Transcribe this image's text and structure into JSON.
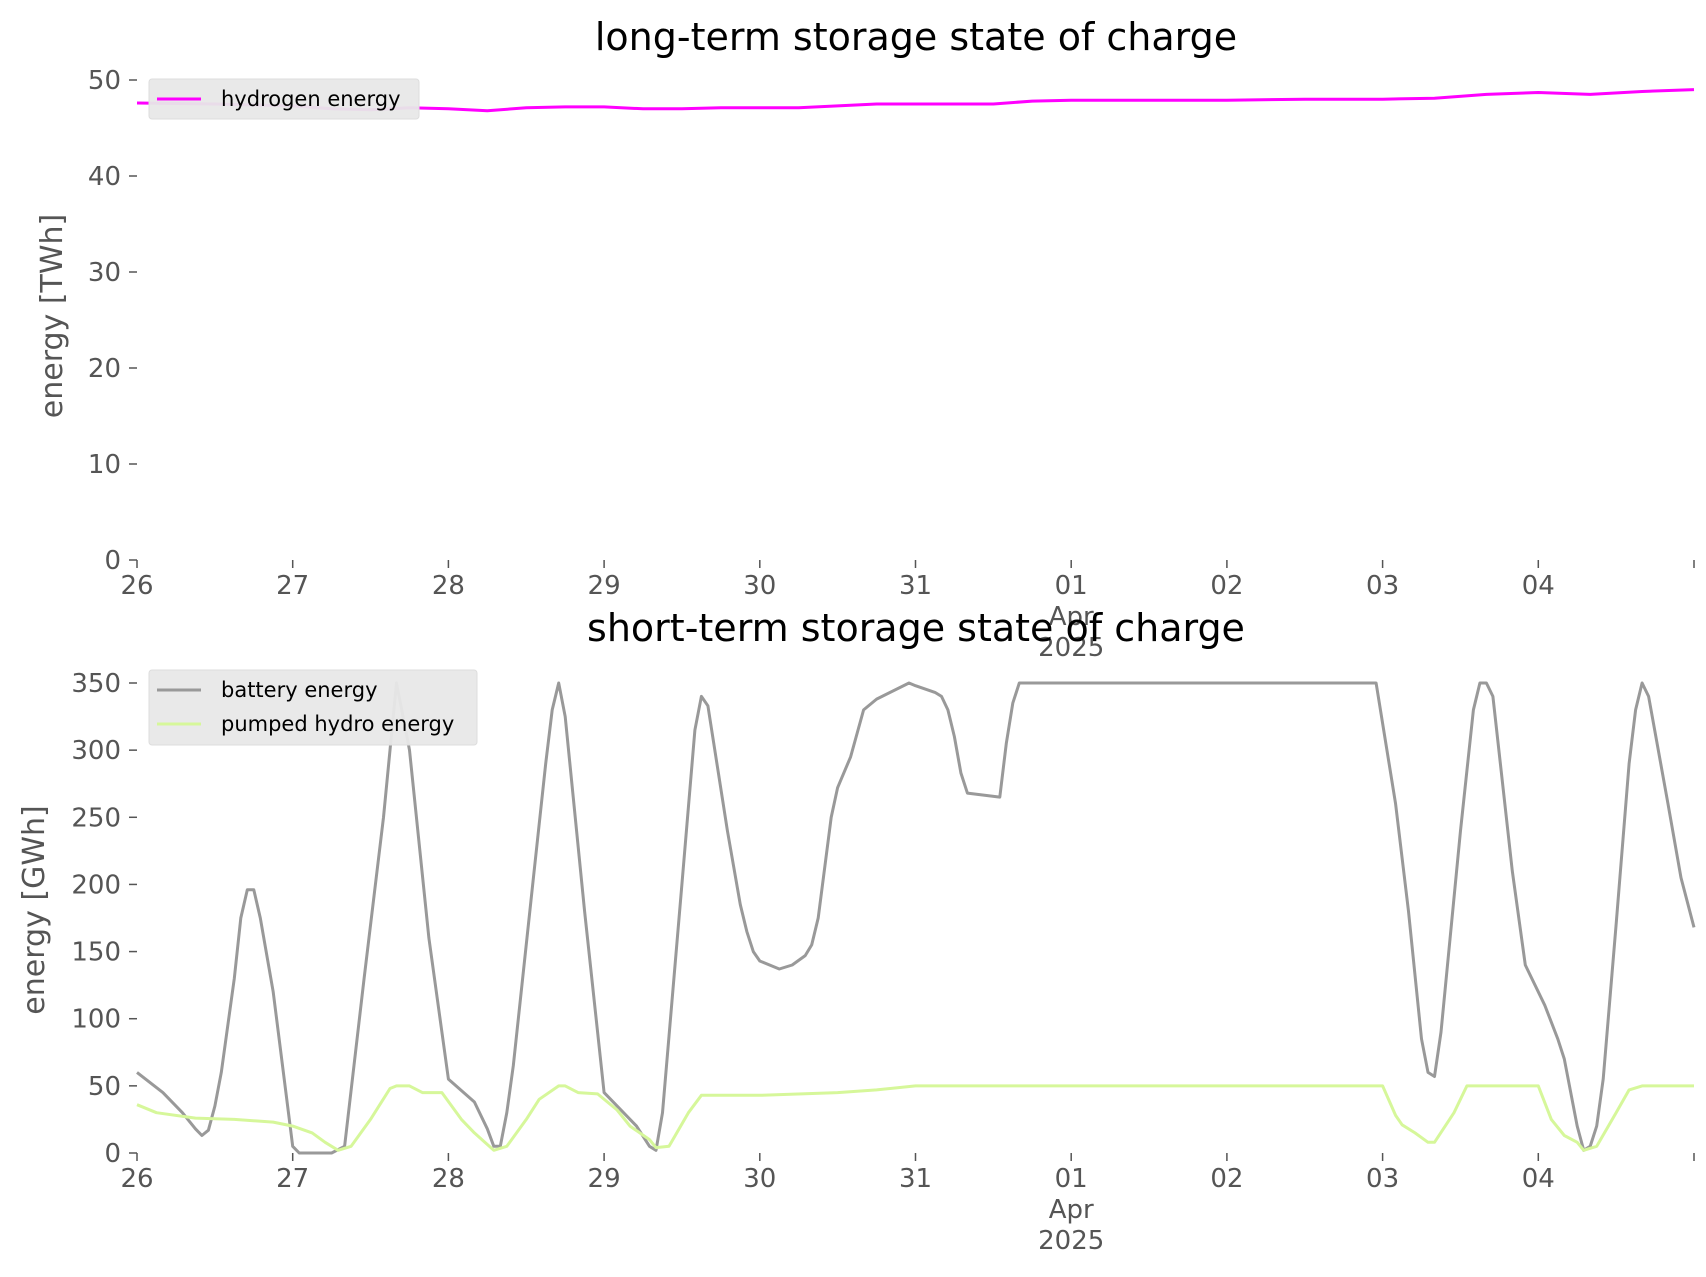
{
  "chart_data": [
    {
      "type": "line",
      "title": "long-term storage state of charge",
      "ylabel": "energy [TWh]",
      "ylim": [
        0,
        50
      ],
      "yticks": [
        0,
        10,
        20,
        30,
        40,
        50
      ],
      "xlim": [
        "2025-03-26T00:00",
        "2025-04-05T00:00"
      ],
      "xtick_labels": [
        "26",
        "27",
        "28",
        "29",
        "30",
        "31",
        "01",
        "02",
        "03",
        "04"
      ],
      "xtick_sublabels": {
        "01": [
          "Apr",
          "2025"
        ]
      },
      "grid": false,
      "legend_position": "top-left",
      "series": [
        {
          "name": "hydrogen energy",
          "color": "#ff00ff",
          "points": [
            [
              "2025-03-26T00:00",
              47.6
            ],
            [
              "2025-03-26T12:00",
              47.5
            ],
            [
              "2025-03-27T00:00",
              47.3
            ],
            [
              "2025-03-27T06:00",
              47.0
            ],
            [
              "2025-03-27T12:00",
              46.9
            ],
            [
              "2025-03-27T18:00",
              47.1
            ],
            [
              "2025-03-28T00:00",
              47.0
            ],
            [
              "2025-03-28T06:00",
              46.8
            ],
            [
              "2025-03-28T12:00",
              47.1
            ],
            [
              "2025-03-28T18:00",
              47.2
            ],
            [
              "2025-03-29T00:00",
              47.2
            ],
            [
              "2025-03-29T06:00",
              47.0
            ],
            [
              "2025-03-29T12:00",
              47.0
            ],
            [
              "2025-03-29T18:00",
              47.1
            ],
            [
              "2025-03-30T00:00",
              47.1
            ],
            [
              "2025-03-30T06:00",
              47.1
            ],
            [
              "2025-03-30T12:00",
              47.3
            ],
            [
              "2025-03-30T18:00",
              47.5
            ],
            [
              "2025-03-31T00:00",
              47.5
            ],
            [
              "2025-03-31T12:00",
              47.5
            ],
            [
              "2025-03-31T18:00",
              47.8
            ],
            [
              "2025-04-01T00:00",
              47.9
            ],
            [
              "2025-04-01T12:00",
              47.9
            ],
            [
              "2025-04-02T00:00",
              47.9
            ],
            [
              "2025-04-02T12:00",
              48.0
            ],
            [
              "2025-04-03T00:00",
              48.0
            ],
            [
              "2025-04-03T08:00",
              48.1
            ],
            [
              "2025-04-03T16:00",
              48.5
            ],
            [
              "2025-04-04T00:00",
              48.7
            ],
            [
              "2025-04-04T08:00",
              48.5
            ],
            [
              "2025-04-04T16:00",
              48.8
            ],
            [
              "2025-04-05T00:00",
              49.0
            ]
          ]
        }
      ]
    },
    {
      "type": "line",
      "title": "short-term storage state of charge",
      "ylabel": "energy [GWh]",
      "ylim": [
        0,
        350
      ],
      "yticks": [
        0,
        50,
        100,
        150,
        200,
        250,
        300,
        350
      ],
      "xlim": [
        "2025-03-26T00:00",
        "2025-04-05T00:00"
      ],
      "xtick_labels": [
        "26",
        "27",
        "28",
        "29",
        "30",
        "31",
        "01",
        "02",
        "03",
        "04"
      ],
      "xtick_sublabels": {
        "01": [
          "Apr",
          "2025"
        ]
      },
      "grid": false,
      "legend_position": "top-left",
      "series": [
        {
          "name": "battery energy",
          "color": "#999999",
          "points": [
            [
              "2025-03-26T00:00",
              60
            ],
            [
              "2025-03-26T04:00",
              45
            ],
            [
              "2025-03-26T07:00",
              30
            ],
            [
              "2025-03-26T09:00",
              18
            ],
            [
              "2025-03-26T10:00",
              13
            ],
            [
              "2025-03-26T11:00",
              17
            ],
            [
              "2025-03-26T12:00",
              35
            ],
            [
              "2025-03-26T13:00",
              60
            ],
            [
              "2025-03-26T15:00",
              130
            ],
            [
              "2025-03-26T16:00",
              175
            ],
            [
              "2025-03-26T17:00",
              196
            ],
            [
              "2025-03-26T18:00",
              196
            ],
            [
              "2025-03-26T19:00",
              175
            ],
            [
              "2025-03-26T21:00",
              120
            ],
            [
              "2025-03-27T00:00",
              5
            ],
            [
              "2025-03-27T01:00",
              0
            ],
            [
              "2025-03-27T06:00",
              0
            ],
            [
              "2025-03-27T08:00",
              5
            ],
            [
              "2025-03-27T11:00",
              130
            ],
            [
              "2025-03-27T14:00",
              250
            ],
            [
              "2025-03-27T16:00",
              350
            ],
            [
              "2025-03-27T18:00",
              300
            ],
            [
              "2025-03-27T21:00",
              160
            ],
            [
              "2025-03-27T23:00",
              90
            ],
            [
              "2025-03-28T00:00",
              55
            ],
            [
              "2025-03-28T04:00",
              38
            ],
            [
              "2025-03-28T06:00",
              18
            ],
            [
              "2025-03-28T07:00",
              5
            ],
            [
              "2025-03-28T08:00",
              5
            ],
            [
              "2025-03-28T09:00",
              30
            ],
            [
              "2025-03-28T10:00",
              65
            ],
            [
              "2025-03-28T13:00",
              200
            ],
            [
              "2025-03-28T15:00",
              290
            ],
            [
              "2025-03-28T16:00",
              330
            ],
            [
              "2025-03-28T17:00",
              350
            ],
            [
              "2025-03-28T18:00",
              325
            ],
            [
              "2025-03-28T21:00",
              180
            ],
            [
              "2025-03-29T00:00",
              45
            ],
            [
              "2025-03-29T05:00",
              20
            ],
            [
              "2025-03-29T07:00",
              5
            ],
            [
              "2025-03-29T08:00",
              2
            ],
            [
              "2025-03-29T09:00",
              30
            ],
            [
              "2025-03-29T12:00",
              200
            ],
            [
              "2025-03-29T14:00",
              315
            ],
            [
              "2025-03-29T15:00",
              340
            ],
            [
              "2025-03-29T16:00",
              333
            ],
            [
              "2025-03-29T19:00",
              240
            ],
            [
              "2025-03-29T21:00",
              185
            ],
            [
              "2025-03-29T22:00",
              165
            ],
            [
              "2025-03-29T23:00",
              150
            ],
            [
              "2025-03-30T00:00",
              143
            ],
            [
              "2025-03-30T03:00",
              137
            ],
            [
              "2025-03-30T05:00",
              140
            ],
            [
              "2025-03-30T07:00",
              147
            ],
            [
              "2025-03-30T08:00",
              155
            ],
            [
              "2025-03-30T09:00",
              175
            ],
            [
              "2025-03-30T11:00",
              250
            ],
            [
              "2025-03-30T12:00",
              272
            ],
            [
              "2025-03-30T14:00",
              295
            ],
            [
              "2025-03-30T16:00",
              330
            ],
            [
              "2025-03-30T18:00",
              338
            ],
            [
              "2025-03-30T23:00",
              350
            ],
            [
              "2025-03-31T00:00",
              348
            ],
            [
              "2025-03-31T03:00",
              343
            ],
            [
              "2025-03-31T04:00",
              340
            ],
            [
              "2025-03-31T05:00",
              330
            ],
            [
              "2025-03-31T06:00",
              310
            ],
            [
              "2025-03-31T07:00",
              283
            ],
            [
              "2025-03-31T08:00",
              268
            ],
            [
              "2025-03-31T13:00",
              265
            ],
            [
              "2025-03-31T14:00",
              305
            ],
            [
              "2025-03-31T15:00",
              335
            ],
            [
              "2025-03-31T16:00",
              350
            ],
            [
              "2025-04-02T23:00",
              350
            ],
            [
              "2025-04-03T02:00",
              260
            ],
            [
              "2025-04-03T04:00",
              180
            ],
            [
              "2025-04-03T06:00",
              85
            ],
            [
              "2025-04-03T07:00",
              60
            ],
            [
              "2025-04-03T08:00",
              57
            ],
            [
              "2025-04-03T09:00",
              90
            ],
            [
              "2025-04-03T12:00",
              240
            ],
            [
              "2025-04-03T14:00",
              330
            ],
            [
              "2025-04-03T15:00",
              350
            ],
            [
              "2025-04-03T16:00",
              350
            ],
            [
              "2025-04-03T17:00",
              340
            ],
            [
              "2025-04-03T20:00",
              210
            ],
            [
              "2025-04-03T22:00",
              140
            ],
            [
              "2025-04-04T01:00",
              110
            ],
            [
              "2025-04-04T03:00",
              85
            ],
            [
              "2025-04-04T04:00",
              70
            ],
            [
              "2025-04-04T06:00",
              20
            ],
            [
              "2025-04-04T07:00",
              2
            ],
            [
              "2025-04-04T08:00",
              5
            ],
            [
              "2025-04-04T09:00",
              20
            ],
            [
              "2025-04-04T10:00",
              55
            ],
            [
              "2025-04-04T12:00",
              170
            ],
            [
              "2025-04-04T14:00",
              290
            ],
            [
              "2025-04-04T15:00",
              330
            ],
            [
              "2025-04-04T16:00",
              350
            ],
            [
              "2025-04-04T17:00",
              340
            ],
            [
              "2025-04-04T20:00",
              260
            ],
            [
              "2025-04-04T22:00",
              205
            ],
            [
              "2025-04-05T00:00",
              168
            ]
          ]
        },
        {
          "name": "pumped hydro energy",
          "color": "#d6f79a",
          "points": [
            [
              "2025-03-26T00:00",
              36
            ],
            [
              "2025-03-26T03:00",
              30
            ],
            [
              "2025-03-26T09:00",
              26
            ],
            [
              "2025-03-26T15:00",
              25
            ],
            [
              "2025-03-26T21:00",
              23
            ],
            [
              "2025-03-27T00:00",
              20
            ],
            [
              "2025-03-27T03:00",
              15
            ],
            [
              "2025-03-27T05:00",
              8
            ],
            [
              "2025-03-27T07:00",
              2
            ],
            [
              "2025-03-27T09:00",
              5
            ],
            [
              "2025-03-27T12:00",
              25
            ],
            [
              "2025-03-27T15:00",
              48
            ],
            [
              "2025-03-27T16:00",
              50
            ],
            [
              "2025-03-27T18:00",
              50
            ],
            [
              "2025-03-27T20:00",
              45
            ],
            [
              "2025-03-27T23:00",
              45
            ],
            [
              "2025-03-28T02:00",
              25
            ],
            [
              "2025-03-28T04:00",
              15
            ],
            [
              "2025-03-28T07:00",
              2
            ],
            [
              "2025-03-28T09:00",
              5
            ],
            [
              "2025-03-28T12:00",
              25
            ],
            [
              "2025-03-28T14:00",
              40
            ],
            [
              "2025-03-28T17:00",
              50
            ],
            [
              "2025-03-28T18:00",
              50
            ],
            [
              "2025-03-28T20:00",
              45
            ],
            [
              "2025-03-28T23:00",
              44
            ],
            [
              "2025-03-29T02:00",
              32
            ],
            [
              "2025-03-29T04:00",
              20
            ],
            [
              "2025-03-29T07:00",
              10
            ],
            [
              "2025-03-29T08:00",
              4
            ],
            [
              "2025-03-29T10:00",
              5
            ],
            [
              "2025-03-29T13:00",
              30
            ],
            [
              "2025-03-29T15:00",
              43
            ],
            [
              "2025-03-30T00:00",
              43
            ],
            [
              "2025-03-30T12:00",
              45
            ],
            [
              "2025-03-30T18:00",
              47
            ],
            [
              "2025-03-31T00:00",
              50
            ],
            [
              "2025-04-03T00:00",
              50
            ],
            [
              "2025-04-03T02:00",
              28
            ],
            [
              "2025-04-03T03:00",
              21
            ],
            [
              "2025-04-03T05:00",
              15
            ],
            [
              "2025-04-03T07:00",
              8
            ],
            [
              "2025-04-03T08:00",
              8
            ],
            [
              "2025-04-03T11:00",
              30
            ],
            [
              "2025-04-03T13:00",
              50
            ],
            [
              "2025-04-04T00:00",
              50
            ],
            [
              "2025-04-04T02:00",
              25
            ],
            [
              "2025-04-04T04:00",
              13
            ],
            [
              "2025-04-04T06:00",
              8
            ],
            [
              "2025-04-04T07:00",
              2
            ],
            [
              "2025-04-04T09:00",
              5
            ],
            [
              "2025-04-04T12:00",
              30
            ],
            [
              "2025-04-04T14:00",
              47
            ],
            [
              "2025-04-04T16:00",
              50
            ],
            [
              "2025-04-05T00:00",
              50
            ]
          ]
        }
      ]
    }
  ]
}
